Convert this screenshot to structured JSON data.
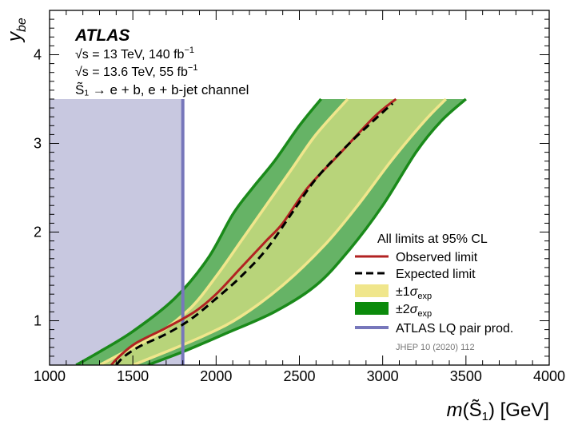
{
  "chart_data": {
    "type": "line",
    "xlabel": "m(S̃₁) [GeV]",
    "ylabel": "y_be",
    "xlim": [
      1000,
      4000
    ],
    "ylim": [
      0.5,
      4.5
    ],
    "xticks": [
      1000,
      1500,
      2000,
      2500,
      3000,
      3500,
      4000
    ],
    "yticks": [
      1,
      2,
      3,
      4
    ],
    "grid": false,
    "legend_position": "right",
    "annotations": {
      "experiment": "ATLAS",
      "line1_pre": "√s = 13 TeV, 140 fb",
      "line2_pre": "√s = 13.6 TeV, 55 fb",
      "lumi_sup": "−1",
      "channel": "S̃₁ → e + b, e + b-jet channel",
      "legend_header": "All limits at 95% CL",
      "reference": "JHEP 10 (2020) 112"
    },
    "legend": [
      {
        "label": "Observed limit",
        "color": "#b22222",
        "style": "solid"
      },
      {
        "label": "Expected limit",
        "color": "#000000",
        "style": "dashed"
      },
      {
        "label": "±1σexp",
        "color": "#f0e68c",
        "style": "band"
      },
      {
        "label": "±2σexp",
        "color": "#0b8a0b",
        "style": "band"
      },
      {
        "label": "ATLAS LQ pair prod.",
        "color": "#7777bb",
        "style": "solid"
      }
    ],
    "excluded_region": {
      "xmax": 1800,
      "color": "#c8c8e0",
      "line_color": "#7777bb"
    },
    "series": [
      {
        "name": "Observed limit",
        "color": "#b22222",
        "x": [
          1370,
          1420,
          1520,
          1700,
          1870,
          2000,
          2150,
          2300,
          2400,
          2550,
          2750,
          2950,
          3080
        ],
        "y": [
          0.5,
          0.6,
          0.75,
          0.92,
          1.1,
          1.3,
          1.6,
          1.9,
          2.1,
          2.5,
          2.9,
          3.3,
          3.5
        ]
      },
      {
        "name": "Expected limit",
        "color": "#000000",
        "x": [
          1400,
          1450,
          1550,
          1700,
          1850,
          2000,
          2150,
          2300,
          2450,
          2600,
          2800,
          3000,
          3060
        ],
        "y": [
          0.5,
          0.6,
          0.72,
          0.85,
          1.02,
          1.25,
          1.5,
          1.8,
          2.2,
          2.6,
          3.0,
          3.35,
          3.45
        ]
      }
    ],
    "bands": [
      {
        "name": "±2σexp",
        "color": "#66b366",
        "edge": "#1a8a1a",
        "upper_x": [
          1160,
          1300,
          1500,
          1750,
          1950,
          2100,
          2220,
          2350,
          2500,
          2630
        ],
        "upper_y": [
          0.5,
          0.65,
          0.88,
          1.25,
          1.7,
          2.2,
          2.5,
          2.8,
          3.2,
          3.5
        ],
        "lower_x": [
          1590,
          1800,
          2050,
          2350,
          2600,
          2800,
          3000,
          3200,
          3350,
          3500
        ],
        "lower_y": [
          0.5,
          0.65,
          0.85,
          1.1,
          1.4,
          1.8,
          2.3,
          2.9,
          3.25,
          3.5
        ]
      },
      {
        "name": "±1σexp",
        "color": "#b8d47a",
        "edge": "#f0e68c",
        "upper_x": [
          1300,
          1450,
          1650,
          1850,
          2000,
          2150,
          2300,
          2450,
          2600,
          2790
        ],
        "upper_y": [
          0.5,
          0.65,
          0.85,
          1.15,
          1.5,
          1.9,
          2.3,
          2.7,
          3.1,
          3.5
        ],
        "lower_x": [
          1500,
          1700,
          1950,
          2150,
          2400,
          2650,
          2850,
          3050,
          3250,
          3380
        ],
        "lower_y": [
          0.5,
          0.65,
          0.85,
          1.05,
          1.4,
          1.85,
          2.3,
          2.8,
          3.25,
          3.5
        ]
      }
    ]
  }
}
